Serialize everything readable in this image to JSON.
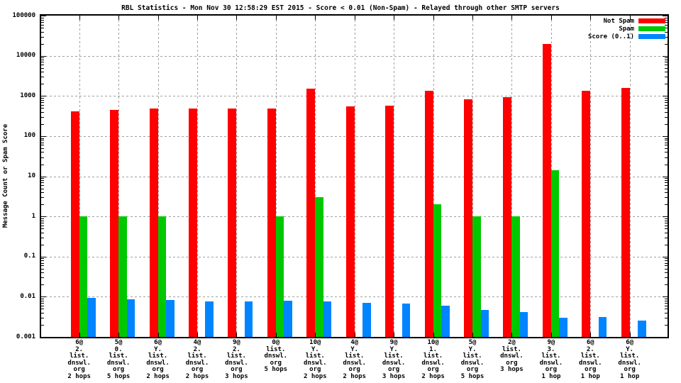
{
  "title": "RBL Statistics - Mon Nov 30 12:58:29 EST 2015 - Score < 0.01 (Non-Spam) - Relayed through other SMTP servers",
  "ylabel": "Message Count or Spam Score",
  "legend": {
    "entries": [
      {
        "label": "Not Spam",
        "color": "#ff0000"
      },
      {
        "label": "Spam",
        "color": "#00c800"
      },
      {
        "label": "Score (0..1)",
        "color": "#0084ff"
      }
    ]
  },
  "colors": {
    "not_spam": "#ff0000",
    "spam": "#00c800",
    "score": "#0084ff",
    "grid": "#a0a0a0",
    "axis": "#000000"
  },
  "chart_data": {
    "type": "bar",
    "title": "RBL Statistics - Mon Nov 30 12:58:29 EST 2015 - Score < 0.01 (Non-Spam) - Relayed through other SMTP servers",
    "xlabel": "",
    "ylabel": "Message Count or Spam Score",
    "yscale": "log",
    "ylim": [
      0.001,
      100000
    ],
    "grid": "on",
    "legend_position": "top-right",
    "ytick_labels": [
      "100000",
      "10000",
      "1000",
      "100",
      "10",
      "1",
      "0.1",
      "0.01",
      "0.001"
    ],
    "categories": [
      [
        "6@",
        "2.",
        "list.",
        "dnswl.",
        "org",
        "2 hops"
      ],
      [
        "5@",
        "0.",
        "list.",
        "dnswl.",
        "org",
        "5 hops"
      ],
      [
        "6@",
        "Y.",
        "list.",
        "dnswl.",
        "org",
        "2 hops"
      ],
      [
        "4@",
        "2.",
        "list.",
        "dnswl.",
        "org",
        "2 hops"
      ],
      [
        "9@",
        "2.",
        "list.",
        "dnswl.",
        "org",
        "3 hops"
      ],
      [
        "0@",
        "list.",
        "dnswl.",
        "org",
        "5 hops"
      ],
      [
        "10@",
        "Y.",
        "list.",
        "dnswl.",
        "org",
        "2 hops"
      ],
      [
        "4@",
        "Y.",
        "list.",
        "dnswl.",
        "org",
        "2 hops"
      ],
      [
        "9@",
        "Y.",
        "list.",
        "dnswl.",
        "org",
        "3 hops"
      ],
      [
        "10@",
        "1.",
        "list.",
        "dnswl.",
        "org",
        "2 hops"
      ],
      [
        "5@",
        "Y.",
        "list.",
        "dnswl.",
        "org",
        "5 hops"
      ],
      [
        "2@",
        "list.",
        "dnswl.",
        "org",
        "3 hops"
      ],
      [
        "9@",
        "3.",
        "list.",
        "dnswl.",
        "org",
        "1 hop"
      ],
      [
        "6@",
        "2.",
        "list.",
        "dnswl.",
        "org",
        "1 hop"
      ],
      [
        "6@",
        "Y.",
        "list.",
        "dnswl.",
        "org",
        "1 hop"
      ]
    ],
    "series": [
      {
        "name": "Not Spam",
        "color": "#ff0000",
        "values": [
          420,
          450,
          480,
          490,
          490,
          490,
          1550,
          550,
          570,
          1320,
          830,
          930,
          20000,
          1350,
          1600
        ]
      },
      {
        "name": "Spam",
        "color": "#00c800",
        "values": [
          1,
          1,
          1,
          0,
          0,
          1,
          3,
          0,
          0,
          2,
          1,
          1,
          14,
          0,
          0
        ]
      },
      {
        "name": "Score (0..1)",
        "color": "#0084ff",
        "values": [
          0.0093,
          0.0087,
          0.0084,
          0.0078,
          0.0078,
          0.008,
          0.0076,
          0.0072,
          0.0068,
          0.0059,
          0.0047,
          0.0042,
          0.003,
          0.0031,
          0.0026
        ]
      }
    ]
  }
}
